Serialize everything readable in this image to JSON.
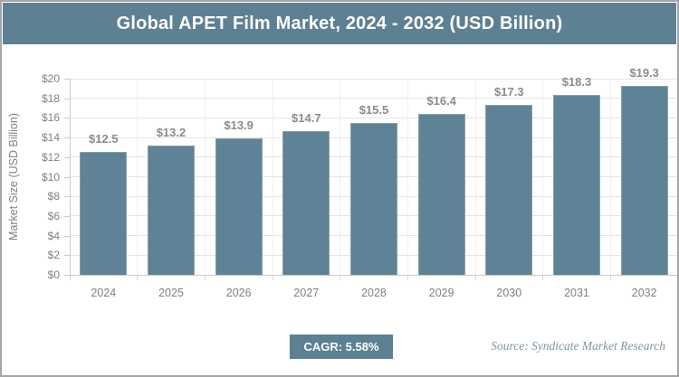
{
  "title": "Global APET Film Market, 2024 - 2032 (USD Billion)",
  "footer": {
    "cagr_label": "CAGR: 5.58%",
    "source": "Source: Syndicate Market Research"
  },
  "colors": {
    "accent": "#5d8093",
    "bar_fill": "#5e8396",
    "grid": "#e4e4e4",
    "axis": "#c9c9c9",
    "tick_text": "#808080",
    "data_label_text": "#8b8b8b",
    "border": "#a6a6a6"
  },
  "chart_data": {
    "type": "bar",
    "title": "Global APET Film Market, 2024 - 2032 (USD Billion)",
    "categories": [
      "2024",
      "2025",
      "2026",
      "2027",
      "2028",
      "2029",
      "2030",
      "2031",
      "2032"
    ],
    "values": [
      12.5,
      13.2,
      13.9,
      14.7,
      15.5,
      16.4,
      17.3,
      18.3,
      19.3
    ],
    "labels": [
      "$12.5",
      "$13.2",
      "$13.9",
      "$14.7",
      "$15.5",
      "$16.4",
      "$17.3",
      "$18.3",
      "$19.3"
    ],
    "xlabel": "",
    "ylabel": "Market Size (USD Billion)",
    "ylim": [
      0,
      20
    ],
    "ytick_step": 2,
    "ytick_prefix": "$",
    "grid": true,
    "legend": false
  }
}
